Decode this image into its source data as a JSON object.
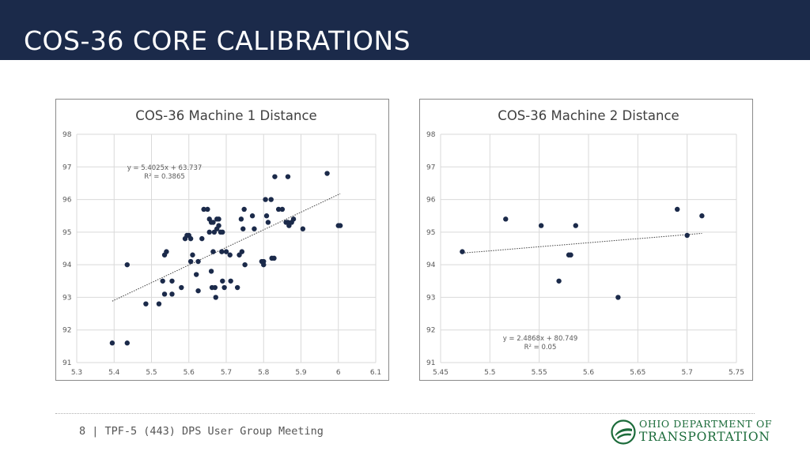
{
  "header": {
    "title": "COS-36 CORE CALIBRATIONS"
  },
  "footer": {
    "text": "8 | TPF-5 (443) DPS User Group Meeting"
  },
  "logo": {
    "line1": "OHIO DEPARTMENT OF",
    "line2": "TRANSPORTATION",
    "color": "#1b6b3a"
  },
  "colors": {
    "header_bg": "#1b2a4a",
    "marker": "#1b2a4a",
    "grid": "#d9d9d9"
  },
  "chart_data": [
    {
      "type": "scatter",
      "title": "COS-36 Machine 1 Distance",
      "xlim": [
        5.3,
        6.1
      ],
      "ylim": [
        91,
        98
      ],
      "xticks": [
        "5.3",
        "5.4",
        "5.5",
        "5.6",
        "5.7",
        "5.8",
        "5.9",
        "6",
        "6.1"
      ],
      "yticks": [
        "91",
        "92",
        "93",
        "94",
        "95",
        "96",
        "97",
        "98"
      ],
      "grid": true,
      "trendline": {
        "slope": 5.4025,
        "intercept": 63.737,
        "x_range": [
          5.395,
          6.005
        ]
      },
      "annotation": [
        "y = 5.4025x + 63.737",
        "R² = 0.3865"
      ],
      "points": [
        [
          5.395,
          91.6
        ],
        [
          5.435,
          91.6
        ],
        [
          5.435,
          94.0
        ],
        [
          5.485,
          92.8
        ],
        [
          5.52,
          92.8
        ],
        [
          5.53,
          93.5
        ],
        [
          5.535,
          93.1
        ],
        [
          5.535,
          94.3
        ],
        [
          5.54,
          94.4
        ],
        [
          5.555,
          93.5
        ],
        [
          5.555,
          93.1
        ],
        [
          5.58,
          93.3
        ],
        [
          5.59,
          94.8
        ],
        [
          5.595,
          94.9
        ],
        [
          5.6,
          94.9
        ],
        [
          5.605,
          94.8
        ],
        [
          5.605,
          94.1
        ],
        [
          5.61,
          94.3
        ],
        [
          5.62,
          93.7
        ],
        [
          5.625,
          93.2
        ],
        [
          5.625,
          94.1
        ],
        [
          5.635,
          94.8
        ],
        [
          5.64,
          95.7
        ],
        [
          5.65,
          95.7
        ],
        [
          5.655,
          95.4
        ],
        [
          5.655,
          95.0
        ],
        [
          5.66,
          95.3
        ],
        [
          5.66,
          93.8
        ],
        [
          5.662,
          93.3
        ],
        [
          5.665,
          95.3
        ],
        [
          5.665,
          94.4
        ],
        [
          5.668,
          95.0
        ],
        [
          5.67,
          93.3
        ],
        [
          5.672,
          93.0
        ],
        [
          5.675,
          95.4
        ],
        [
          5.675,
          95.1
        ],
        [
          5.68,
          95.2
        ],
        [
          5.68,
          95.4
        ],
        [
          5.685,
          95.0
        ],
        [
          5.688,
          94.4
        ],
        [
          5.69,
          95.0
        ],
        [
          5.69,
          93.5
        ],
        [
          5.695,
          93.3
        ],
        [
          5.7,
          94.4
        ],
        [
          5.71,
          94.3
        ],
        [
          5.712,
          93.5
        ],
        [
          5.73,
          93.3
        ],
        [
          5.735,
          94.3
        ],
        [
          5.74,
          95.4
        ],
        [
          5.742,
          94.4
        ],
        [
          5.745,
          95.1
        ],
        [
          5.748,
          95.7
        ],
        [
          5.75,
          94.0
        ],
        [
          5.77,
          95.5
        ],
        [
          5.775,
          95.1
        ],
        [
          5.795,
          94.1
        ],
        [
          5.8,
          94.1
        ],
        [
          5.8,
          94.0
        ],
        [
          5.805,
          96.0
        ],
        [
          5.808,
          95.5
        ],
        [
          5.812,
          95.3
        ],
        [
          5.82,
          96.0
        ],
        [
          5.822,
          94.2
        ],
        [
          5.828,
          94.2
        ],
        [
          5.83,
          96.7
        ],
        [
          5.84,
          95.7
        ],
        [
          5.85,
          95.7
        ],
        [
          5.86,
          95.3
        ],
        [
          5.865,
          96.7
        ],
        [
          5.865,
          95.3
        ],
        [
          5.868,
          95.2
        ],
        [
          5.875,
          95.3
        ],
        [
          5.88,
          95.4
        ],
        [
          5.905,
          95.1
        ],
        [
          5.97,
          96.8
        ],
        [
          6.0,
          95.2
        ],
        [
          6.005,
          95.2
        ]
      ]
    },
    {
      "type": "scatter",
      "title": "COS-36 Machine 2 Distance",
      "xlim": [
        5.45,
        5.75
      ],
      "ylim": [
        91,
        98
      ],
      "xticks": [
        "5.45",
        "5.5",
        "5.55",
        "5.6",
        "5.65",
        "5.7",
        "5.75"
      ],
      "yticks": [
        "91",
        "92",
        "93",
        "94",
        "95",
        "96",
        "97",
        "98"
      ],
      "grid": true,
      "trendline": {
        "slope": 2.4868,
        "intercept": 80.749,
        "x_range": [
          5.472,
          5.715
        ]
      },
      "annotation": [
        "y = 2.4868x + 80.749",
        "R² = 0.05"
      ],
      "points": [
        [
          5.472,
          94.4
        ],
        [
          5.516,
          95.4
        ],
        [
          5.552,
          95.2
        ],
        [
          5.57,
          93.5
        ],
        [
          5.58,
          94.3
        ],
        [
          5.582,
          94.3
        ],
        [
          5.587,
          95.2
        ],
        [
          5.63,
          93.0
        ],
        [
          5.69,
          95.7
        ],
        [
          5.7,
          94.9
        ],
        [
          5.715,
          95.5
        ]
      ]
    }
  ]
}
